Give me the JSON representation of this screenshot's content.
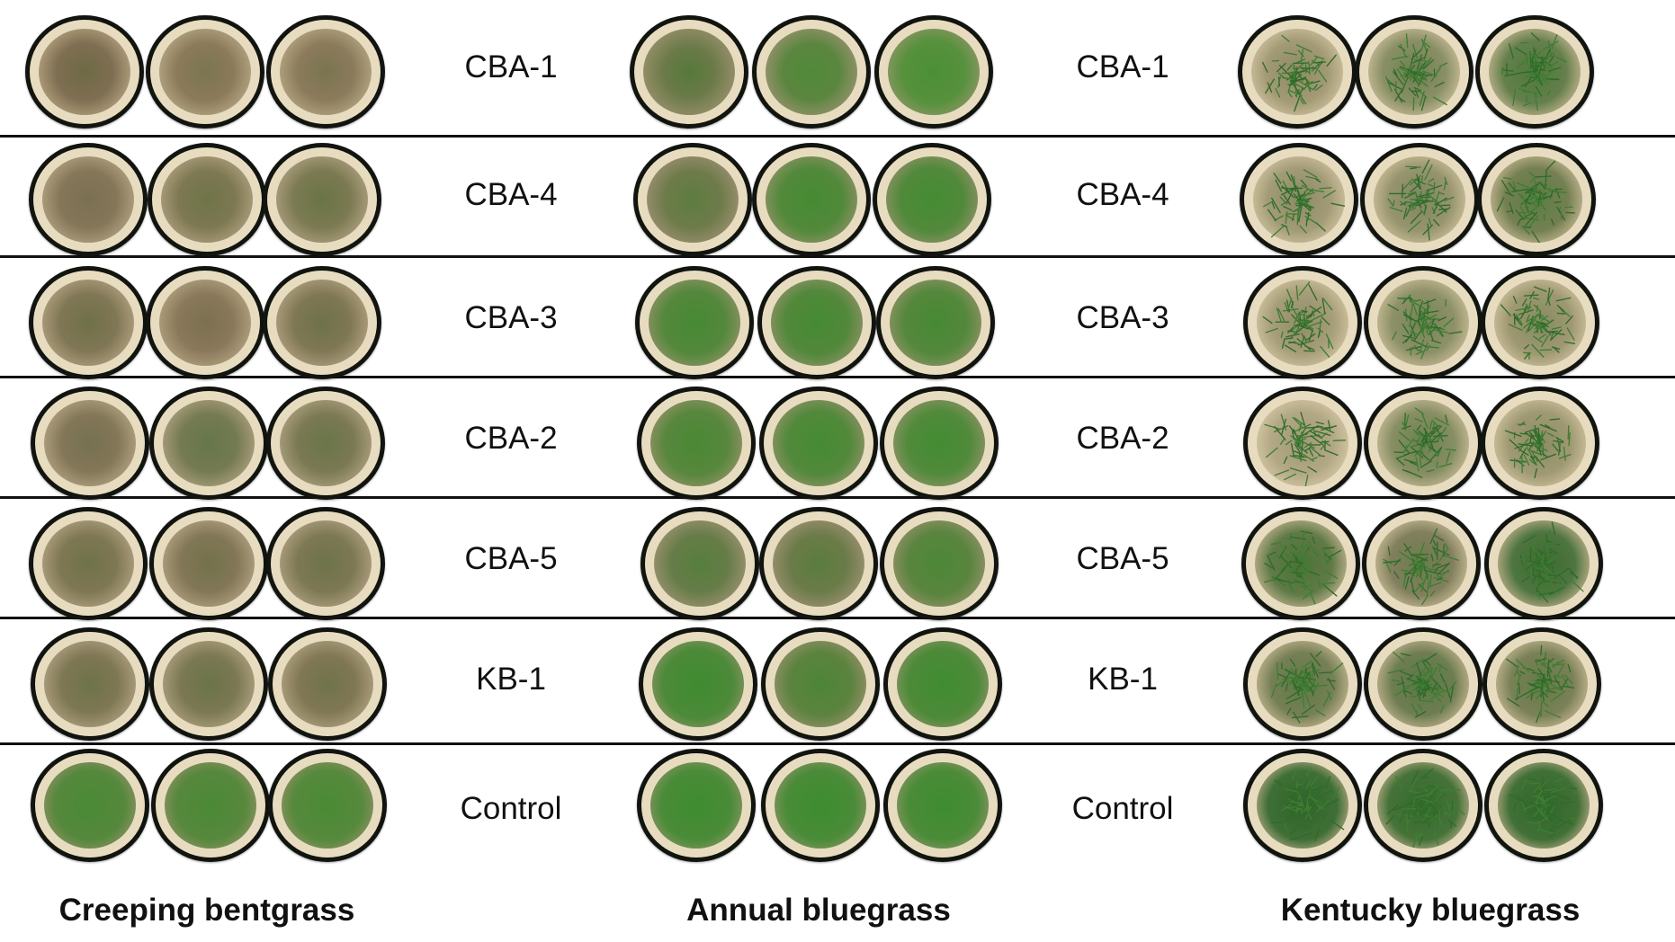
{
  "rows": [
    {
      "label_left": "CBA-1",
      "label_mid": "CBA-1"
    },
    {
      "label_left": "CBA-4",
      "label_mid": "CBA-4"
    },
    {
      "label_left": "CBA-3",
      "label_mid": "CBA-3"
    },
    {
      "label_left": "CBA-2",
      "label_mid": "CBA-2"
    },
    {
      "label_left": "CBA-5",
      "label_mid": "CBA-5"
    },
    {
      "label_left": "KB-1",
      "label_mid": "KB-1"
    },
    {
      "label_left": "Control",
      "label_mid": "Control"
    }
  ],
  "species": {
    "left": "Creeping bentgrass",
    "middle": "Annual bluegrass",
    "right": "Kentucky bluegrass"
  },
  "colors": {
    "pot": "#11140f",
    "sand": "#e8dcc0",
    "bentgrass_damaged": "#7d6f4f",
    "bentgrass_healthy": "#4f8f3a",
    "bluegrass_annual": "#3f8a32",
    "bluegrass_kentucky": "#2f6b2a",
    "divider": "#111111"
  }
}
